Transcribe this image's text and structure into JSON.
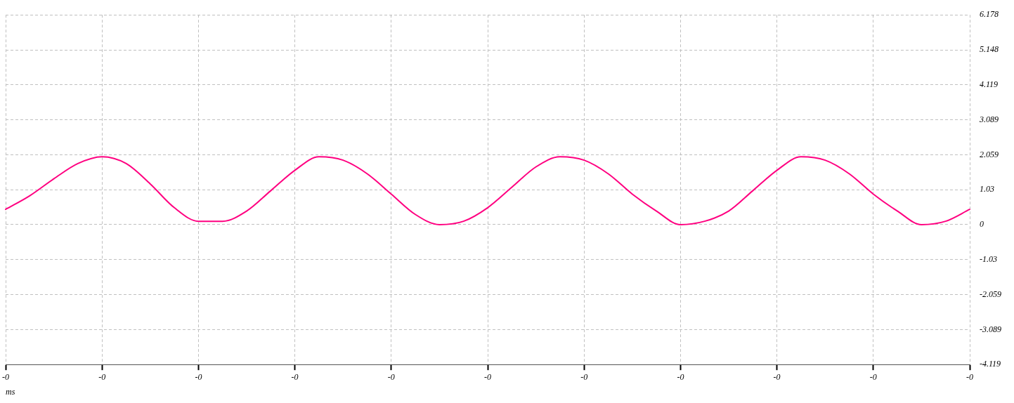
{
  "chart_data": {
    "type": "line",
    "xlabel": "ms",
    "categories": [
      "-0",
      null,
      null,
      null,
      "-0",
      null,
      null,
      null,
      "-0",
      null,
      null,
      null,
      "-0",
      null,
      null,
      null,
      "-0",
      null,
      null,
      null,
      "-0",
      null,
      null,
      null,
      "-0",
      null,
      null,
      null,
      "-0",
      null,
      null,
      null,
      "-0",
      null,
      null,
      null,
      "-0",
      null,
      null,
      null,
      "-0"
    ],
    "ylim": [
      -4.119,
      6.178
    ],
    "yticks": [
      -4.119,
      -3.089,
      -2.059,
      -1.03,
      0,
      1.03,
      2.059,
      3.089,
      4.119,
      5.148,
      6.178
    ],
    "grid": true,
    "marker": "none",
    "line_style": "solid",
    "series": [
      {
        "color": "#ff0080",
        "values": [
          0.45,
          0.85,
          1.35,
          1.8,
          2,
          1.8,
          1.2,
          0.5,
          0.1,
          0.1,
          0.4,
          1,
          1.6,
          2,
          1.9,
          1.5,
          0.9,
          0.3,
          0,
          0.1,
          0.5,
          1.1,
          1.7,
          2,
          1.9,
          1.5,
          0.9,
          0.4,
          0,
          0.1,
          0.4,
          1,
          1.6,
          2,
          1.9,
          1.5,
          0.9,
          0.4,
          0,
          0.1,
          0.45
        ]
      }
    ]
  }
}
